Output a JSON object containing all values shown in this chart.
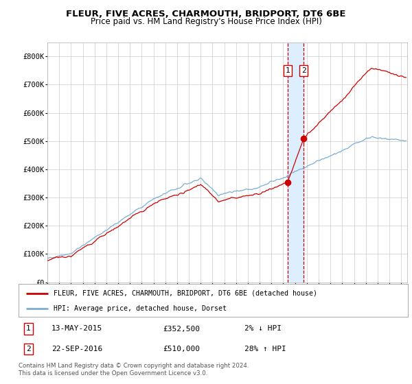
{
  "title": "FLEUR, FIVE ACRES, CHARMOUTH, BRIDPORT, DT6 6BE",
  "subtitle": "Price paid vs. HM Land Registry's House Price Index (HPI)",
  "legend_line1": "FLEUR, FIVE ACRES, CHARMOUTH, BRIDPORT, DT6 6BE (detached house)",
  "legend_line2": "HPI: Average price, detached house, Dorset",
  "annotation1_label": "1",
  "annotation1_date": "13-MAY-2015",
  "annotation1_price": "£352,500",
  "annotation1_pct": "2% ↓ HPI",
  "annotation2_label": "2",
  "annotation2_date": "22-SEP-2016",
  "annotation2_price": "£510,000",
  "annotation2_pct": "28% ↑ HPI",
  "footer": "Contains HM Land Registry data © Crown copyright and database right 2024.\nThis data is licensed under the Open Government Licence v3.0.",
  "red_line_color": "#cc0000",
  "blue_line_color": "#7aaed4",
  "background_color": "#ffffff",
  "plot_bg_color": "#ffffff",
  "grid_color": "#cccccc",
  "vline_color_dashed": "#cc0000",
  "vband_color": "#ddeeff",
  "sale1_x": 2015.37,
  "sale1_y": 352500,
  "sale2_x": 2016.73,
  "sale2_y": 510000,
  "ylim": [
    0,
    850000
  ],
  "xlim_left": 1995.0,
  "xlim_right": 2025.5
}
